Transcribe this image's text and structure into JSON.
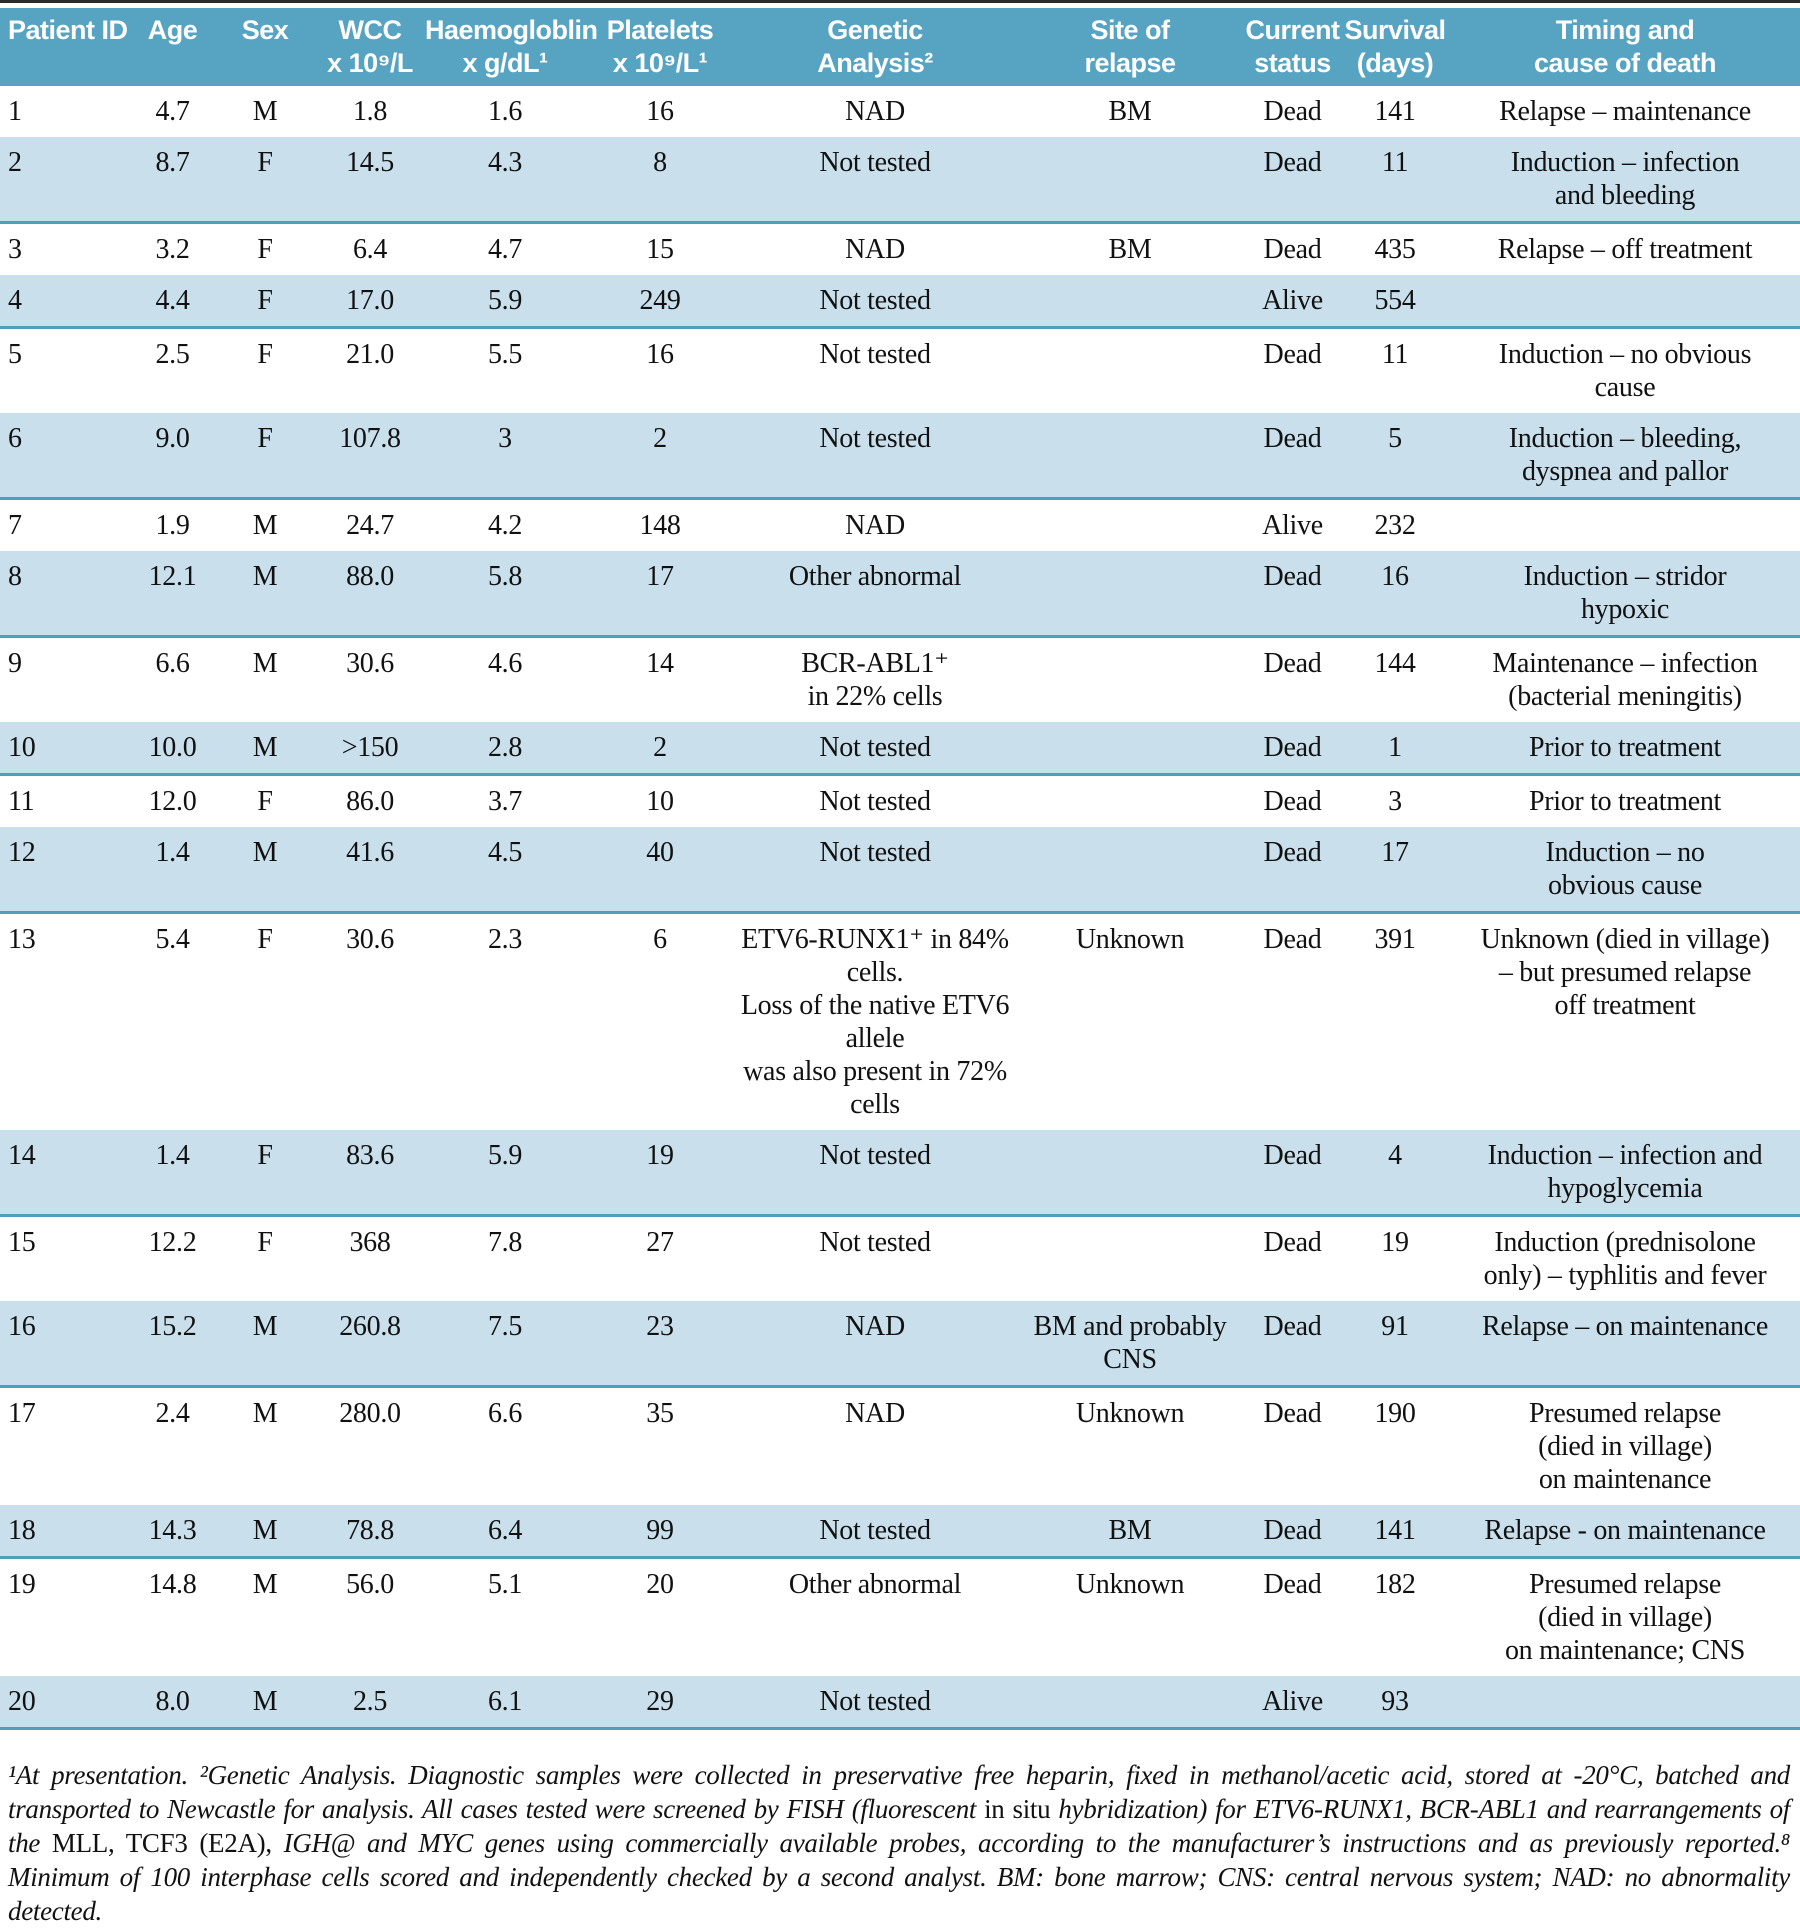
{
  "table": {
    "header": [
      "Patient ID",
      "Age",
      "Sex",
      "WCC\nx 10⁹/L",
      "Haemogloblin\nx g/dL¹",
      "Platelets\nx 10⁹/L¹",
      "Genetic\nAnalysis²",
      "Site of\nrelapse",
      "Current\nstatus",
      "Survival\n(days)",
      "Timing and\ncause of death"
    ],
    "rows": [
      [
        "1",
        "4.7",
        "M",
        "1.8",
        "1.6",
        "16",
        "NAD",
        "BM",
        "Dead",
        "141",
        "Relapse – maintenance"
      ],
      [
        "2",
        "8.7",
        "F",
        "14.5",
        "4.3",
        "8",
        "Not tested",
        "",
        "Dead",
        "11",
        "Induction – infection\nand bleeding"
      ],
      [
        "3",
        "3.2",
        "F",
        "6.4",
        "4.7",
        "15",
        "NAD",
        "BM",
        "Dead",
        "435",
        "Relapse – off treatment"
      ],
      [
        "4",
        "4.4",
        "F",
        "17.0",
        "5.9",
        "249",
        "Not tested",
        "",
        "Alive",
        "554",
        ""
      ],
      [
        "5",
        "2.5",
        "F",
        "21.0",
        "5.5",
        "16",
        "Not tested",
        "",
        "Dead",
        "11",
        "Induction – no obvious\ncause"
      ],
      [
        "6",
        "9.0",
        "F",
        "107.8",
        "3",
        "2",
        "Not tested",
        "",
        "Dead",
        "5",
        "Induction – bleeding,\ndyspnea and pallor"
      ],
      [
        "7",
        "1.9",
        "M",
        "24.7",
        "4.2",
        "148",
        "NAD",
        "",
        "Alive",
        "232",
        ""
      ],
      [
        "8",
        "12.1",
        "M",
        "88.0",
        "5.8",
        "17",
        "Other abnormal",
        "",
        "Dead",
        "16",
        "Induction – stridor\nhypoxic"
      ],
      [
        "9",
        "6.6",
        "M",
        "30.6",
        "4.6",
        "14",
        "BCR-ABL1⁺\nin 22% cells",
        "",
        "Dead",
        "144",
        "Maintenance – infection\n(bacterial meningitis)"
      ],
      [
        "10",
        "10.0",
        "M",
        ">150",
        "2.8",
        "2",
        "Not tested",
        "",
        "Dead",
        "1",
        "Prior to treatment"
      ],
      [
        "11",
        "12.0",
        "F",
        "86.0",
        "3.7",
        "10",
        "Not tested",
        "",
        "Dead",
        "3",
        "Prior to treatment"
      ],
      [
        "12",
        "1.4",
        "M",
        "41.6",
        "4.5",
        "40",
        "Not tested",
        "",
        "Dead",
        "17",
        "Induction – no\nobvious cause"
      ],
      [
        "13",
        "5.4",
        "F",
        "30.6",
        "2.3",
        "6",
        "ETV6-RUNX1⁺ in 84% cells.\nLoss of the native ETV6 allele\nwas also present in 72% cells",
        "Unknown",
        "Dead",
        "391",
        "Unknown (died in village)\n– but presumed relapse\noff treatment"
      ],
      [
        "14",
        "1.4",
        "F",
        "83.6",
        "5.9",
        "19",
        "Not tested",
        "",
        "Dead",
        "4",
        "Induction – infection and\nhypoglycemia"
      ],
      [
        "15",
        "12.2",
        "F",
        "368",
        "7.8",
        "27",
        "Not tested",
        "",
        "Dead",
        "19",
        "Induction (prednisolone\nonly) – typhlitis and fever"
      ],
      [
        "16",
        "15.2",
        "M",
        "260.8",
        "7.5",
        "23",
        "NAD",
        "BM and probably\nCNS",
        "Dead",
        "91",
        "Relapse – on maintenance"
      ],
      [
        "17",
        "2.4",
        "M",
        "280.0",
        "6.6",
        "35",
        "NAD",
        "Unknown",
        "Dead",
        "190",
        "Presumed relapse\n(died in village)\non maintenance"
      ],
      [
        "18",
        "14.3",
        "M",
        "78.8",
        "6.4",
        "99",
        "Not tested",
        "BM",
        "Dead",
        "141",
        "Relapse - on maintenance"
      ],
      [
        "19",
        "14.8",
        "M",
        "56.0",
        "5.1",
        "20",
        "Other abnormal",
        "Unknown",
        "Dead",
        "182",
        "Presumed relapse\n(died in village)\non maintenance; CNS"
      ],
      [
        "20",
        "8.0",
        "M",
        "2.5",
        "6.1",
        "29",
        "Not tested",
        "",
        "Alive",
        "93",
        ""
      ]
    ]
  },
  "footnote": {
    "segments": [
      {
        "text": "¹At presentation. ²Genetic Analysis. Diagnostic samples were collected in preservative free heparin, fixed in methanol/acetic acid, stored at -20°C, batched and transported to Newcastle for analysis. All cases tested were screened by FISH (fluorescent ",
        "italic": true
      },
      {
        "text": "in situ ",
        "italic": false
      },
      {
        "text": "hybridization) for ETV6-RUNX1, BCR-ABL1 and rearrangements of the ",
        "italic": true
      },
      {
        "text": "MLL, TCF3 (E2A), ",
        "italic": false
      },
      {
        "text": "IGH@ and MYC genes using commercially available probes, according to the manufacturer’s instructions and as previously reported.⁸ Minimum of 100 interphase cells scored and independently checked by a second analyst. BM: bone marrow; CNS: central nervous system; NAD: no abnormality detected.",
        "italic": true
      }
    ]
  },
  "colors": {
    "header_bg": "#57a3c2",
    "stripe_bg": "#c9dfec",
    "stripe_border": "#4d9fc0",
    "header_text": "#ffffff",
    "body_text": "#111111",
    "top_rule": "#2b2b2b"
  }
}
